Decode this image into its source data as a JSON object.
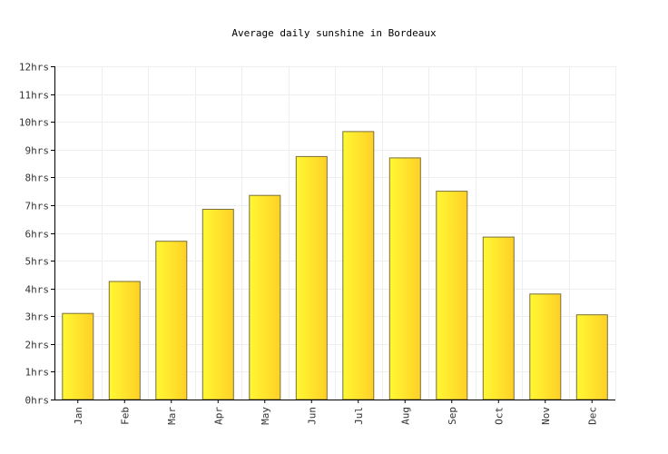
{
  "chart_data": {
    "type": "bar",
    "title": "Average daily sunshine in Bordeaux",
    "xlabel": "",
    "ylabel": "",
    "categories": [
      "Jan",
      "Feb",
      "Mar",
      "Apr",
      "May",
      "Jun",
      "Jul",
      "Aug",
      "Sep",
      "Oct",
      "Nov",
      "Dec"
    ],
    "values": [
      3.1,
      4.25,
      5.7,
      6.85,
      7.35,
      8.75,
      9.65,
      8.7,
      7.5,
      5.85,
      3.8,
      3.05
    ],
    "ylim": [
      0,
      12
    ],
    "y_ticks": [
      "0hrs",
      "1hrs",
      "2hrs",
      "3hrs",
      "4hrs",
      "5hrs",
      "6hrs",
      "7hrs",
      "8hrs",
      "9hrs",
      "10hrs",
      "11hrs",
      "12hrs"
    ],
    "grid": true,
    "bar_color_light": "#fff833",
    "bar_color_dark": "#ffd027",
    "bar_stroke": "#7a6f3a"
  }
}
